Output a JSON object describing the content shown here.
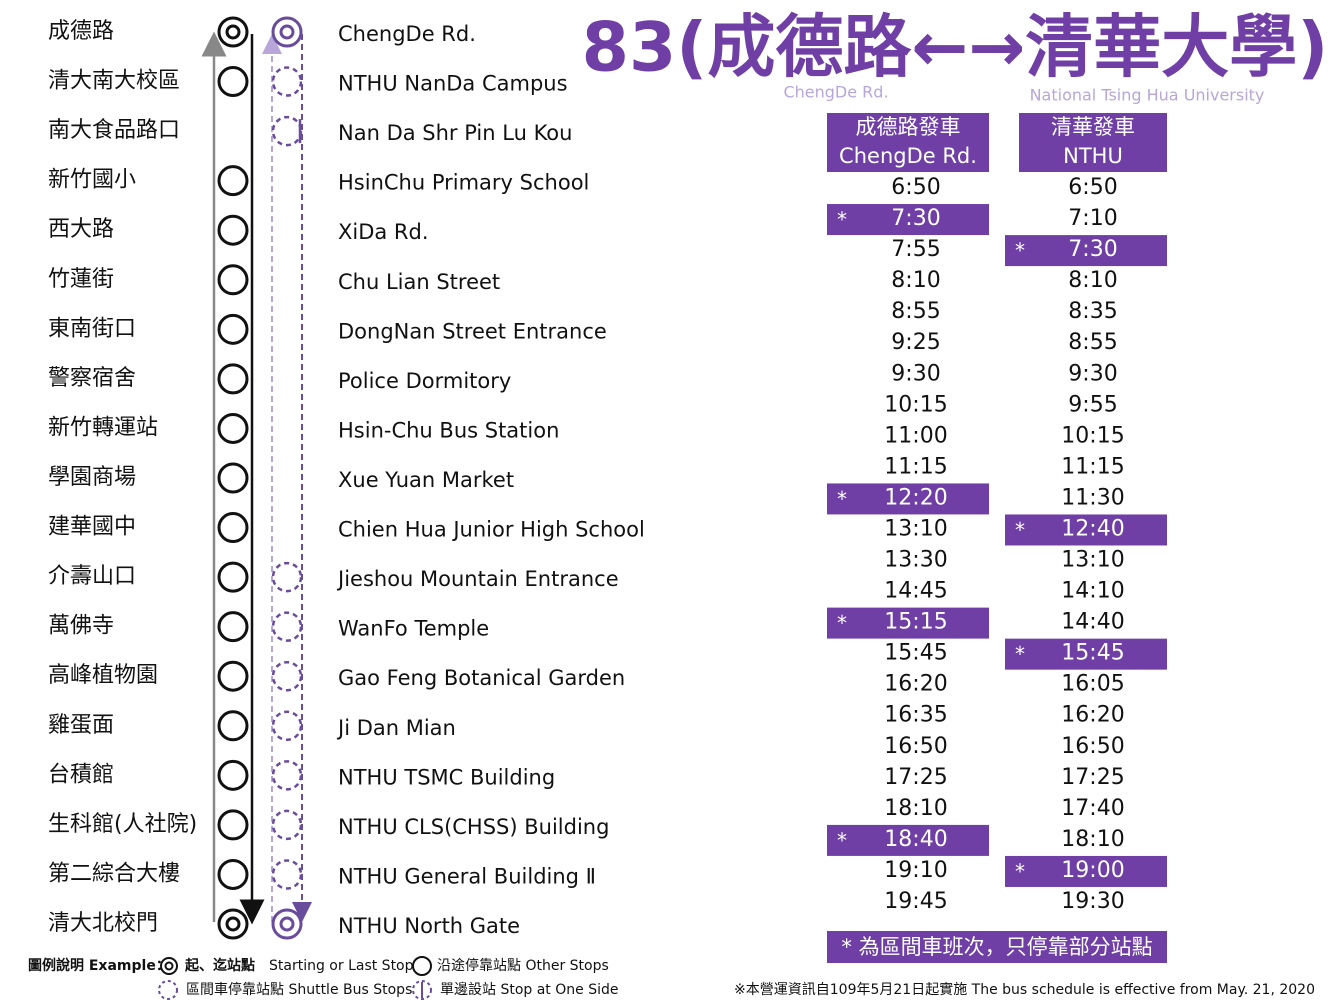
{
  "title": "83(成德路←→清華大學)",
  "subtitle_left": "ChengDe Rd.",
  "subtitle_right": "National Tsing Hua University",
  "stops": [
    {
      "zh": "成德路",
      "en": "ChengDe Rd.",
      "main": "terminal",
      "shuttle": "terminal"
    },
    {
      "zh": "清大南大校區",
      "en": "NTHU  NanDa Campus",
      "main": "stop",
      "shuttle": "stop"
    },
    {
      "zh": "南大食品路口",
      "en": "Nan Da Shr Pin Lu Kou",
      "main": null,
      "shuttle": "one-side"
    },
    {
      "zh": "新竹國小",
      "en": "HsinChu Primary School",
      "main": "stop",
      "shuttle": null
    },
    {
      "zh": "西大路",
      "en": "XiDa Rd.",
      "main": "stop",
      "shuttle": null
    },
    {
      "zh": "竹蓮街",
      "en": "Chu Lian Street",
      "main": "stop",
      "shuttle": null
    },
    {
      "zh": "東南街口",
      "en": "DongNan Street Entrance",
      "main": "stop",
      "shuttle": null
    },
    {
      "zh": "警察宿舍",
      "en": "Police Dormitory",
      "main": "stop",
      "shuttle": null
    },
    {
      "zh": "新竹轉運站",
      "en": "Hsin-Chu Bus Station",
      "main": "stop",
      "shuttle": null
    },
    {
      "zh": "學園商場",
      "en": "Xue Yuan Market",
      "main": "stop",
      "shuttle": null
    },
    {
      "zh": "建華國中",
      "en": "Chien Hua Junior High School",
      "main": "stop",
      "shuttle": null
    },
    {
      "zh": "介壽山口",
      "en": "Jieshou Mountain Entrance",
      "main": "stop",
      "shuttle": "stop"
    },
    {
      "zh": "萬佛寺",
      "en": "WanFo Temple",
      "main": "stop",
      "shuttle": "stop"
    },
    {
      "zh": "高峰植物園",
      "en": "Gao Feng Botanical Garden",
      "main": "stop",
      "shuttle": "stop"
    },
    {
      "zh": "雞蛋面",
      "en": "Ji Dan Mian",
      "main": "stop",
      "shuttle": "stop"
    },
    {
      "zh": "台積館",
      "en": "NTHU TSMC Building",
      "main": "stop",
      "shuttle": "stop"
    },
    {
      "zh": "生科館(人社院)",
      "en": "NTHU CLS(CHSS) Building",
      "main": "stop",
      "shuttle": "stop"
    },
    {
      "zh": "第二綜合大樓",
      "en": "NTHU General Building Ⅱ",
      "main": "stop",
      "shuttle": "stop"
    },
    {
      "zh": "清大北校門",
      "en": "NTHU North Gate",
      "main": "terminal",
      "shuttle": "terminal"
    }
  ],
  "timetable": {
    "shuttle_marker": "*",
    "columns": [
      {
        "header": [
          "成德路發車",
          "ChengDe Rd."
        ],
        "times": [
          {
            "time": "6:50",
            "shuttle": false
          },
          {
            "time": "7:30",
            "shuttle": true
          },
          {
            "time": "7:55",
            "shuttle": false
          },
          {
            "time": "8:10",
            "shuttle": false
          },
          {
            "time": "8:55",
            "shuttle": false
          },
          {
            "time": "9:25",
            "shuttle": false
          },
          {
            "time": "9:30",
            "shuttle": false
          },
          {
            "time": "10:15",
            "shuttle": false
          },
          {
            "time": "11:00",
            "shuttle": false
          },
          {
            "time": "11:15",
            "shuttle": false
          },
          {
            "time": "12:20",
            "shuttle": true
          },
          {
            "time": "13:10",
            "shuttle": false
          },
          {
            "time": "13:30",
            "shuttle": false
          },
          {
            "time": "14:45",
            "shuttle": false
          },
          {
            "time": "15:15",
            "shuttle": true
          },
          {
            "time": "15:45",
            "shuttle": false
          },
          {
            "time": "16:20",
            "shuttle": false
          },
          {
            "time": "16:35",
            "shuttle": false
          },
          {
            "time": "16:50",
            "shuttle": false
          },
          {
            "time": "17:25",
            "shuttle": false
          },
          {
            "time": "18:10",
            "shuttle": false
          },
          {
            "time": "18:40",
            "shuttle": true
          },
          {
            "time": "19:10",
            "shuttle": false
          },
          {
            "time": "19:45",
            "shuttle": false
          }
        ]
      },
      {
        "header": [
          "清華發車",
          "NTHU"
        ],
        "times": [
          {
            "time": "6:50",
            "shuttle": false
          },
          {
            "time": "7:10",
            "shuttle": false
          },
          {
            "time": "7:30",
            "shuttle": true
          },
          {
            "time": "8:10",
            "shuttle": false
          },
          {
            "time": "8:35",
            "shuttle": false
          },
          {
            "time": "8:55",
            "shuttle": false
          },
          {
            "time": "9:30",
            "shuttle": false
          },
          {
            "time": "9:55",
            "shuttle": false
          },
          {
            "time": "10:15",
            "shuttle": false
          },
          {
            "time": "11:15",
            "shuttle": false
          },
          {
            "time": "11:30",
            "shuttle": false
          },
          {
            "time": "12:40",
            "shuttle": true
          },
          {
            "time": "13:10",
            "shuttle": false
          },
          {
            "time": "14:10",
            "shuttle": false
          },
          {
            "time": "14:40",
            "shuttle": false
          },
          {
            "time": "15:45",
            "shuttle": true
          },
          {
            "time": "16:05",
            "shuttle": false
          },
          {
            "time": "16:20",
            "shuttle": false
          },
          {
            "time": "16:50",
            "shuttle": false
          },
          {
            "time": "17:25",
            "shuttle": false
          },
          {
            "time": "17:40",
            "shuttle": false
          },
          {
            "time": "18:10",
            "shuttle": false
          },
          {
            "time": "19:00",
            "shuttle": true
          },
          {
            "time": "19:30",
            "shuttle": false
          }
        ]
      }
    ],
    "footnote": "* 為區間車班次，只停靠部分站點"
  },
  "legend": {
    "heading": "圖例說明 Example：",
    "terminal_zh": "起、迄站點",
    "terminal_en": "Starting or Last Stop",
    "other": "沿途停靠站點 Other Stops",
    "shuttle": "區間車停靠站點 Shuttle Bus Stops",
    "one_side": "單邊設站 Stop at One Side"
  },
  "notice": "※本營運資訊自109年5月21日起實施 The bus schedule is effective from May. 21, 2020"
}
